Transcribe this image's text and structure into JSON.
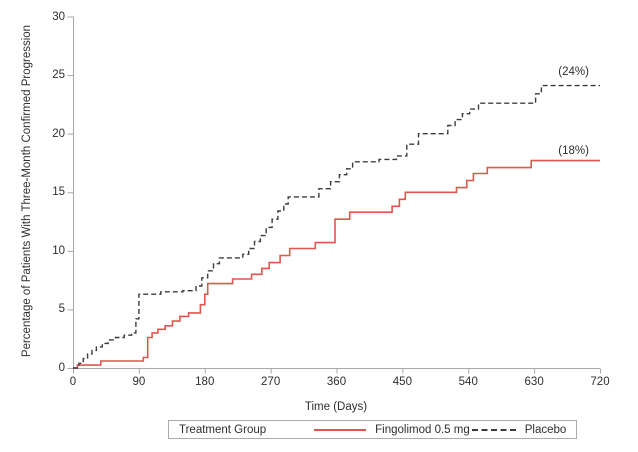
{
  "figure": {
    "background": "#ffffff",
    "axis_color": "#a8a8a8",
    "text_color": "#2e2e2e"
  },
  "chart_data": {
    "type": "line",
    "subtype": "step",
    "title": "",
    "xlabel": "Time (Days)",
    "ylabel": "Percentage of Patients With Three-Month Confirmed Progression",
    "xlim": [
      0,
      720
    ],
    "ylim": [
      0,
      30
    ],
    "x_ticks": [
      0,
      90,
      180,
      270,
      360,
      450,
      540,
      630,
      720
    ],
    "y_ticks": [
      0,
      5,
      10,
      15,
      20,
      25,
      30
    ],
    "grid": false,
    "legend_position": "bottom",
    "legend_title": "Treatment Group",
    "series": [
      {
        "name": "Fingolimod 0.5 mg",
        "color": "#e0564e",
        "style": "solid",
        "final_value_label": "(18%)",
        "final_value": 17.7,
        "points": [
          [
            0,
            0
          ],
          [
            6,
            0.25
          ],
          [
            38,
            0.6
          ],
          [
            96,
            0.9
          ],
          [
            102,
            2.6
          ],
          [
            108,
            3.0
          ],
          [
            116,
            3.3
          ],
          [
            126,
            3.6
          ],
          [
            136,
            4.0
          ],
          [
            146,
            4.4
          ],
          [
            158,
            4.7
          ],
          [
            174,
            5.4
          ],
          [
            180,
            6.3
          ],
          [
            184,
            7.2
          ],
          [
            218,
            7.6
          ],
          [
            244,
            8.0
          ],
          [
            258,
            8.5
          ],
          [
            268,
            9.0
          ],
          [
            283,
            9.6
          ],
          [
            296,
            10.2
          ],
          [
            331,
            10.7
          ],
          [
            358,
            12.7
          ],
          [
            378,
            13.3
          ],
          [
            436,
            13.8
          ],
          [
            446,
            14.4
          ],
          [
            454,
            15.0
          ],
          [
            524,
            15.4
          ],
          [
            538,
            16.0
          ],
          [
            547,
            16.6
          ],
          [
            566,
            17.1
          ],
          [
            626,
            17.7
          ],
          [
            720,
            17.7
          ]
        ]
      },
      {
        "name": "Placebo",
        "color": "#3c3c3c",
        "style": "dashed",
        "final_value_label": "(24%)",
        "final_value": 24.1,
        "points": [
          [
            0,
            0
          ],
          [
            8,
            0.4
          ],
          [
            14,
            0.8
          ],
          [
            20,
            1.2
          ],
          [
            26,
            1.5
          ],
          [
            32,
            1.8
          ],
          [
            40,
            2.1
          ],
          [
            48,
            2.4
          ],
          [
            58,
            2.6
          ],
          [
            70,
            2.8
          ],
          [
            80,
            3.0
          ],
          [
            86,
            4.2
          ],
          [
            90,
            6.3
          ],
          [
            120,
            6.5
          ],
          [
            150,
            6.6
          ],
          [
            168,
            7.0
          ],
          [
            176,
            7.7
          ],
          [
            184,
            8.3
          ],
          [
            192,
            8.9
          ],
          [
            200,
            9.4
          ],
          [
            232,
            9.7
          ],
          [
            240,
            10.2
          ],
          [
            248,
            10.8
          ],
          [
            256,
            11.3
          ],
          [
            264,
            12.0
          ],
          [
            272,
            12.7
          ],
          [
            280,
            13.4
          ],
          [
            288,
            14.0
          ],
          [
            294,
            14.6
          ],
          [
            336,
            15.3
          ],
          [
            352,
            15.9
          ],
          [
            364,
            16.5
          ],
          [
            374,
            17.0
          ],
          [
            382,
            17.6
          ],
          [
            418,
            17.8
          ],
          [
            442,
            18.1
          ],
          [
            456,
            19.1
          ],
          [
            472,
            20.0
          ],
          [
            512,
            20.7
          ],
          [
            522,
            21.2
          ],
          [
            532,
            21.7
          ],
          [
            542,
            22.1
          ],
          [
            554,
            22.6
          ],
          [
            632,
            23.4
          ],
          [
            640,
            24.1
          ],
          [
            720,
            24.1
          ]
        ]
      }
    ],
    "annotations": [
      {
        "text": "(24%)",
        "x": 684,
        "y": 25.3
      },
      {
        "text": "(18%)",
        "x": 684,
        "y": 18.5
      }
    ]
  }
}
